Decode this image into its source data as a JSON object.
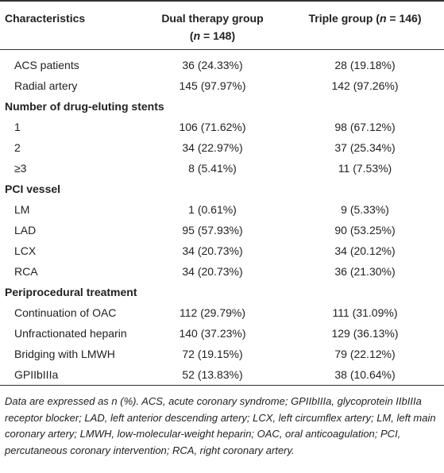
{
  "table": {
    "header": [
      {
        "parts": [
          "Characteristics"
        ]
      },
      {
        "parts": [
          "Dual therapy group",
          "(",
          "n",
          " = 148)"
        ]
      },
      {
        "parts": [
          "Triple group (",
          "n",
          " = 146)"
        ]
      }
    ],
    "rows": [
      {
        "label": "ACS patients",
        "cells": [
          "36 (24.33%)",
          "28 (19.18%)"
        ]
      },
      {
        "label": "Radial artery",
        "cells": [
          "145 (97.97%)",
          "142 (97.26%)"
        ]
      },
      {
        "label": "Number of drug-eluting stents"
      },
      {
        "label": "1",
        "cells": [
          "106 (71.62%)",
          "98 (67.12%)"
        ]
      },
      {
        "label": "2",
        "cells": [
          "34 (22.97%)",
          "37 (25.34%)"
        ]
      },
      {
        "label": "≥3",
        "cells": [
          "8 (5.41%)",
          "11 (7.53%)"
        ]
      },
      {
        "label": "PCI vessel"
      },
      {
        "label": "LM",
        "cells": [
          "1 (0.61%)",
          "9 (5.33%)"
        ]
      },
      {
        "label": "LAD",
        "cells": [
          "95 (57.93%)",
          "90 (53.25%)"
        ]
      },
      {
        "label": "LCX",
        "cells": [
          "34 (20.73%)",
          "34 (20.12%)"
        ]
      },
      {
        "label": "RCA",
        "cells": [
          "34 (20.73%)",
          "36 (21.30%)"
        ]
      },
      {
        "label": "Periprocedural treatment"
      },
      {
        "label": "Continuation of OAC",
        "cells": [
          "112 (29.79%)",
          "111 (31.09%)"
        ]
      },
      {
        "label": "Unfractionated heparin",
        "cells": [
          "140 (37.23%)",
          "129 (36.13%)"
        ]
      },
      {
        "label": "Bridging with LMWH",
        "cells": [
          "72 (19.15%)",
          "79 (22.12%)"
        ]
      },
      {
        "label": "GPIIbIIIa",
        "cells": [
          "52 (13.83%)",
          "38 (10.64%)"
        ]
      }
    ],
    "footnote": "Data are expressed as n (%). ACS, acute coronary syndrome; GPIIbIIIa, glycoprotein IIbIIIa receptor blocker; LAD, left anterior descending artery; LCX, left circumflex artery; LM, left main coronary artery; LMWH, low-molecular-weight heparin; OAC, oral anticoagulation; PCI, percutaneous coronary intervention; RCA, right coronary artery."
  }
}
